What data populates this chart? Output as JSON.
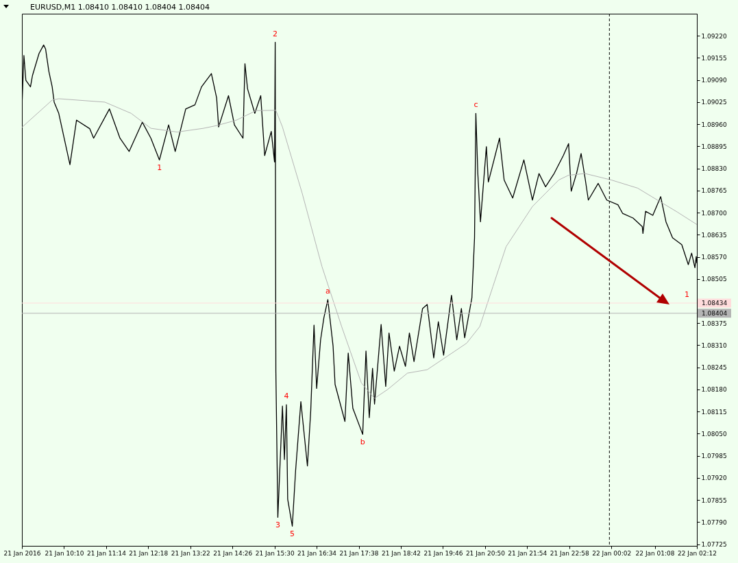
{
  "chart_data": {
    "type": "line",
    "title": "EURUSD,M1  1.08410 1.08410 1.08404 1.08404",
    "xlim": [
      "2016-01-21T09:06",
      "2016-01-22T02:12"
    ],
    "ylim": [
      1.0772,
      1.09285
    ],
    "xticks": [
      {
        "value": "2016-01-21T09:06",
        "label": "21 Jan 2016"
      },
      {
        "value": "2016-01-21T10:10",
        "label": "21 Jan 10:10"
      },
      {
        "value": "2016-01-21T11:14",
        "label": "21 Jan 11:14"
      },
      {
        "value": "2016-01-21T12:18",
        "label": "21 Jan 12:18"
      },
      {
        "value": "2016-01-21T13:22",
        "label": "21 Jan 13:22"
      },
      {
        "value": "2016-01-21T14:26",
        "label": "21 Jan 14:26"
      },
      {
        "value": "2016-01-21T15:30",
        "label": "21 Jan 15:30"
      },
      {
        "value": "2016-01-21T16:34",
        "label": "21 Jan 16:34"
      },
      {
        "value": "2016-01-21T17:38",
        "label": "21 Jan 17:38"
      },
      {
        "value": "2016-01-21T18:42",
        "label": "21 Jan 18:42"
      },
      {
        "value": "2016-01-21T19:46",
        "label": "21 Jan 19:46"
      },
      {
        "value": "2016-01-21T20:50",
        "label": "21 Jan 20:50"
      },
      {
        "value": "2016-01-21T21:54",
        "label": "21 Jan 21:54"
      },
      {
        "value": "2016-01-21T22:58",
        "label": "21 Jan 22:58"
      },
      {
        "value": "2016-01-22T00:02",
        "label": "22 Jan 00:02"
      },
      {
        "value": "2016-01-22T01:08",
        "label": "22 Jan 01:08"
      },
      {
        "value": "2016-01-22T02:12",
        "label": "22 Jan 02:12"
      }
    ],
    "yticks": [
      {
        "value": 1.0922,
        "label": "1.09220"
      },
      {
        "value": 1.09155,
        "label": "1.09155"
      },
      {
        "value": 1.0909,
        "label": "1.09090"
      },
      {
        "value": 1.09025,
        "label": "1.09025"
      },
      {
        "value": 1.0896,
        "label": "1.08960"
      },
      {
        "value": 1.08895,
        "label": "1.08895"
      },
      {
        "value": 1.0883,
        "label": "1.08830"
      },
      {
        "value": 1.08765,
        "label": "1.08765"
      },
      {
        "value": 1.087,
        "label": "1.08700"
      },
      {
        "value": 1.08635,
        "label": "1.08635"
      },
      {
        "value": 1.0857,
        "label": "1.08570"
      },
      {
        "value": 1.08505,
        "label": "1.08505"
      },
      {
        "value": 1.08375,
        "label": "1.08375"
      },
      {
        "value": 1.0831,
        "label": "1.08310"
      },
      {
        "value": 1.08245,
        "label": "1.08245"
      },
      {
        "value": 1.0818,
        "label": "1.08180"
      },
      {
        "value": 1.08115,
        "label": "1.08115"
      },
      {
        "value": 1.0805,
        "label": "1.08050"
      },
      {
        "value": 1.07985,
        "label": "1.07985"
      },
      {
        "value": 1.0792,
        "label": "1.07920"
      },
      {
        "value": 1.07855,
        "label": "1.07855"
      },
      {
        "value": 1.0779,
        "label": "1.07790"
      },
      {
        "value": 1.07725,
        "label": "1.07725"
      }
    ],
    "series": [
      {
        "color": "#000000",
        "x": [
          "2016-01-21T09:06",
          "2016-01-21T09:09",
          "2016-01-21T09:12",
          "2016-01-21T09:19",
          "2016-01-21T09:22",
          "2016-01-21T09:32",
          "2016-01-21T09:39",
          "2016-01-21T09:42",
          "2016-01-21T09:47",
          "2016-01-21T09:52",
          "2016-01-21T09:55",
          "2016-01-21T10:02",
          "2016-01-21T10:19",
          "2016-01-21T10:29",
          "2016-01-21T10:49",
          "2016-01-21T10:55",
          "2016-01-21T11:19",
          "2016-01-21T11:35",
          "2016-01-21T11:49",
          "2016-01-21T12:09",
          "2016-01-21T12:22",
          "2016-01-21T12:35",
          "2016-01-21T12:49",
          "2016-01-21T12:59",
          "2016-01-21T13:15",
          "2016-01-21T13:29",
          "2016-01-21T13:39",
          "2016-01-21T13:54",
          "2016-01-21T14:02",
          "2016-01-21T14:05",
          "2016-01-21T14:20",
          "2016-01-21T14:29",
          "2016-01-21T14:42",
          "2016-01-21T14:45",
          "2016-01-21T14:49",
          "2016-01-21T15:00",
          "2016-01-21T15:09",
          "2016-01-21T15:15",
          "2016-01-21T15:25",
          "2016-01-21T15:30",
          "2016-01-21T15:31",
          "2016-01-21T15:32",
          "2016-01-21T15:35",
          "2016-01-21T15:42",
          "2016-01-21T15:45",
          "2016-01-21T15:48",
          "2016-01-21T15:50",
          "2016-01-21T15:57",
          "2016-01-21T16:02",
          "2016-01-21T16:10",
          "2016-01-21T16:20",
          "2016-01-21T16:25",
          "2016-01-21T16:30",
          "2016-01-21T16:34",
          "2016-01-21T16:40",
          "2016-01-21T16:45",
          "2016-01-21T16:51",
          "2016-01-21T16:59",
          "2016-01-21T17:02",
          "2016-01-21T17:17",
          "2016-01-21T17:22",
          "2016-01-21T17:29",
          "2016-01-21T17:44",
          "2016-01-21T17:49",
          "2016-01-21T17:54",
          "2016-01-21T17:59",
          "2016-01-21T18:02",
          "2016-01-21T18:12",
          "2016-01-21T18:19",
          "2016-01-21T18:24",
          "2016-01-21T18:32",
          "2016-01-21T18:40",
          "2016-01-21T18:49",
          "2016-01-21T18:55",
          "2016-01-21T19:02",
          "2016-01-21T19:15",
          "2016-01-21T19:22",
          "2016-01-21T19:32",
          "2016-01-21T19:39",
          "2016-01-21T19:47",
          "2016-01-21T19:59",
          "2016-01-21T20:07",
          "2016-01-21T20:14",
          "2016-01-21T20:19",
          "2016-01-21T20:30",
          "2016-01-21T20:34",
          "2016-01-21T20:36",
          "2016-01-21T20:39",
          "2016-01-21T20:43",
          "2016-01-21T20:52",
          "2016-01-21T20:55",
          "2016-01-21T21:12",
          "2016-01-21T21:19",
          "2016-01-21T21:32",
          "2016-01-21T21:49",
          "2016-01-21T22:02",
          "2016-01-21T22:12",
          "2016-01-21T22:22",
          "2016-01-21T22:35",
          "2016-01-21T22:49",
          "2016-01-21T22:57",
          "2016-01-21T23:01",
          "2016-01-21T23:09",
          "2016-01-21T23:16",
          "2016-01-21T23:22",
          "2016-01-21T23:27",
          "2016-01-21T23:42",
          "2016-01-21T23:55",
          "2016-01-22T00:12",
          "2016-01-22T00:19",
          "2016-01-22T00:35",
          "2016-01-22T00:49",
          "2016-01-22T00:50",
          "2016-01-22T00:54",
          "2016-01-22T01:05",
          "2016-01-22T01:17",
          "2016-01-22T01:25",
          "2016-01-22T01:35",
          "2016-01-22T01:49",
          "2016-01-22T01:59",
          "2016-01-22T02:04",
          "2016-01-22T02:09",
          "2016-01-22T02:11",
          "2016-01-22T02:12"
        ],
        "values": [
          1.09011,
          1.09162,
          1.09089,
          1.0907,
          1.09103,
          1.09168,
          1.09193,
          1.09181,
          1.09115,
          1.0907,
          1.09025,
          1.08992,
          1.08841,
          1.08972,
          1.08947,
          1.08919,
          1.09005,
          1.08919,
          1.0888,
          1.08966,
          1.08919,
          1.08855,
          1.08958,
          1.0888,
          1.09005,
          1.09017,
          1.0907,
          1.09109,
          1.09037,
          1.08952,
          1.09044,
          1.08958,
          1.08919,
          1.09138,
          1.09064,
          1.08992,
          1.09044,
          1.08868,
          1.08939,
          1.08849,
          1.09201,
          1.08234,
          1.07804,
          1.08131,
          1.07974,
          1.08135,
          1.07857,
          1.07778,
          1.07941,
          1.08144,
          1.07955,
          1.08117,
          1.08369,
          1.08183,
          1.08326,
          1.08391,
          1.08444,
          1.08307,
          1.08195,
          1.08086,
          1.08287,
          1.08125,
          1.08048,
          1.08293,
          1.08097,
          1.08242,
          1.08137,
          1.08371,
          1.08189,
          1.08346,
          1.08234,
          1.08307,
          1.08248,
          1.08346,
          1.08262,
          1.08418,
          1.0843,
          1.08273,
          1.08379,
          1.08281,
          1.08457,
          1.08326,
          1.08418,
          1.08332,
          1.0845,
          1.08626,
          1.08992,
          1.08815,
          1.08673,
          1.08894,
          1.0879,
          1.08919,
          1.08796,
          1.08743,
          1.08855,
          1.08737,
          1.08815,
          1.08776,
          1.08815,
          1.08868,
          1.08903,
          1.08763,
          1.08815,
          1.08874,
          1.08802,
          1.08737,
          1.08786,
          1.08737,
          1.08723,
          1.08698,
          1.08684,
          1.08659,
          1.08639,
          1.08704,
          1.08692,
          1.08747,
          1.08673,
          1.08626,
          1.08606,
          1.08547,
          1.08581,
          1.08538,
          1.08571,
          1.08551
        ]
      },
      {
        "color": "#b4b4b4",
        "x": [
          "2016-01-21T09:06",
          "2016-01-21T09:52",
          "2016-01-21T10:02",
          "2016-01-21T11:12",
          "2016-01-21T11:52",
          "2016-01-21T12:22",
          "2016-01-21T13:02",
          "2016-01-21T13:42",
          "2016-01-21T14:02",
          "2016-01-21T14:32",
          "2016-01-21T15:02",
          "2016-01-21T15:32",
          "2016-01-21T15:42",
          "2016-01-21T16:12",
          "2016-01-21T16:42",
          "2016-01-21T17:12",
          "2016-01-21T17:42",
          "2016-01-21T18:02",
          "2016-01-21T18:22",
          "2016-01-21T18:52",
          "2016-01-21T19:22",
          "2016-01-21T19:52",
          "2016-01-21T20:22",
          "2016-01-21T20:42",
          "2016-01-21T21:02",
          "2016-01-21T21:22",
          "2016-01-21T21:42",
          "2016-01-21T22:02",
          "2016-01-21T22:22",
          "2016-01-21T22:42",
          "2016-01-21T22:57",
          "2016-01-21T23:22",
          "2016-01-22T00:02",
          "2016-01-22T00:42",
          "2016-01-22T01:12",
          "2016-01-22T01:42",
          "2016-01-22T02:12"
        ],
        "values": [
          1.08951,
          1.09031,
          1.09035,
          1.09025,
          1.08992,
          1.08948,
          1.08937,
          1.08948,
          1.08956,
          1.08972,
          1.09,
          1.09001,
          1.08952,
          1.08757,
          1.08542,
          1.08365,
          1.08199,
          1.08154,
          1.0818,
          1.08228,
          1.08238,
          1.08277,
          1.08316,
          1.08365,
          1.08483,
          1.086,
          1.08659,
          1.08718,
          1.08757,
          1.08796,
          1.0881,
          1.08815,
          1.08796,
          1.08772,
          1.08737,
          1.08702,
          1.08665
        ]
      }
    ],
    "ref_lines": [
      {
        "axis": "x",
        "value": "2016-01-21T23:59",
        "color": "#000000",
        "line_style": "dashed"
      },
      {
        "axis": "y",
        "value": 1.08434,
        "label": "1.08434",
        "color": "#ffdcdc"
      },
      {
        "axis": "y",
        "value": 1.08404,
        "label": "1.08404",
        "color": "#b4b4b4"
      }
    ],
    "annotations": [
      {
        "text": "1",
        "x": "2016-01-21T12:35",
        "y": 1.08855
      },
      {
        "text": "2",
        "x": "2016-01-21T15:31",
        "y": 1.09201
      },
      {
        "text": "3",
        "x": "2016-01-21T15:35",
        "y": 1.07804
      },
      {
        "text": "4",
        "x": "2016-01-21T15:48",
        "y": 1.08135
      },
      {
        "text": "5",
        "x": "2016-01-21T15:57",
        "y": 1.07778
      },
      {
        "text": "a",
        "x": "2016-01-21T16:51",
        "y": 1.08444
      },
      {
        "text": "b",
        "x": "2016-01-21T17:44",
        "y": 1.08048
      },
      {
        "text": "c",
        "x": "2016-01-21T20:36",
        "y": 1.08992
      },
      {
        "text": "1",
        "x": "2016-01-22T01:57",
        "y": 1.08434
      }
    ]
  }
}
